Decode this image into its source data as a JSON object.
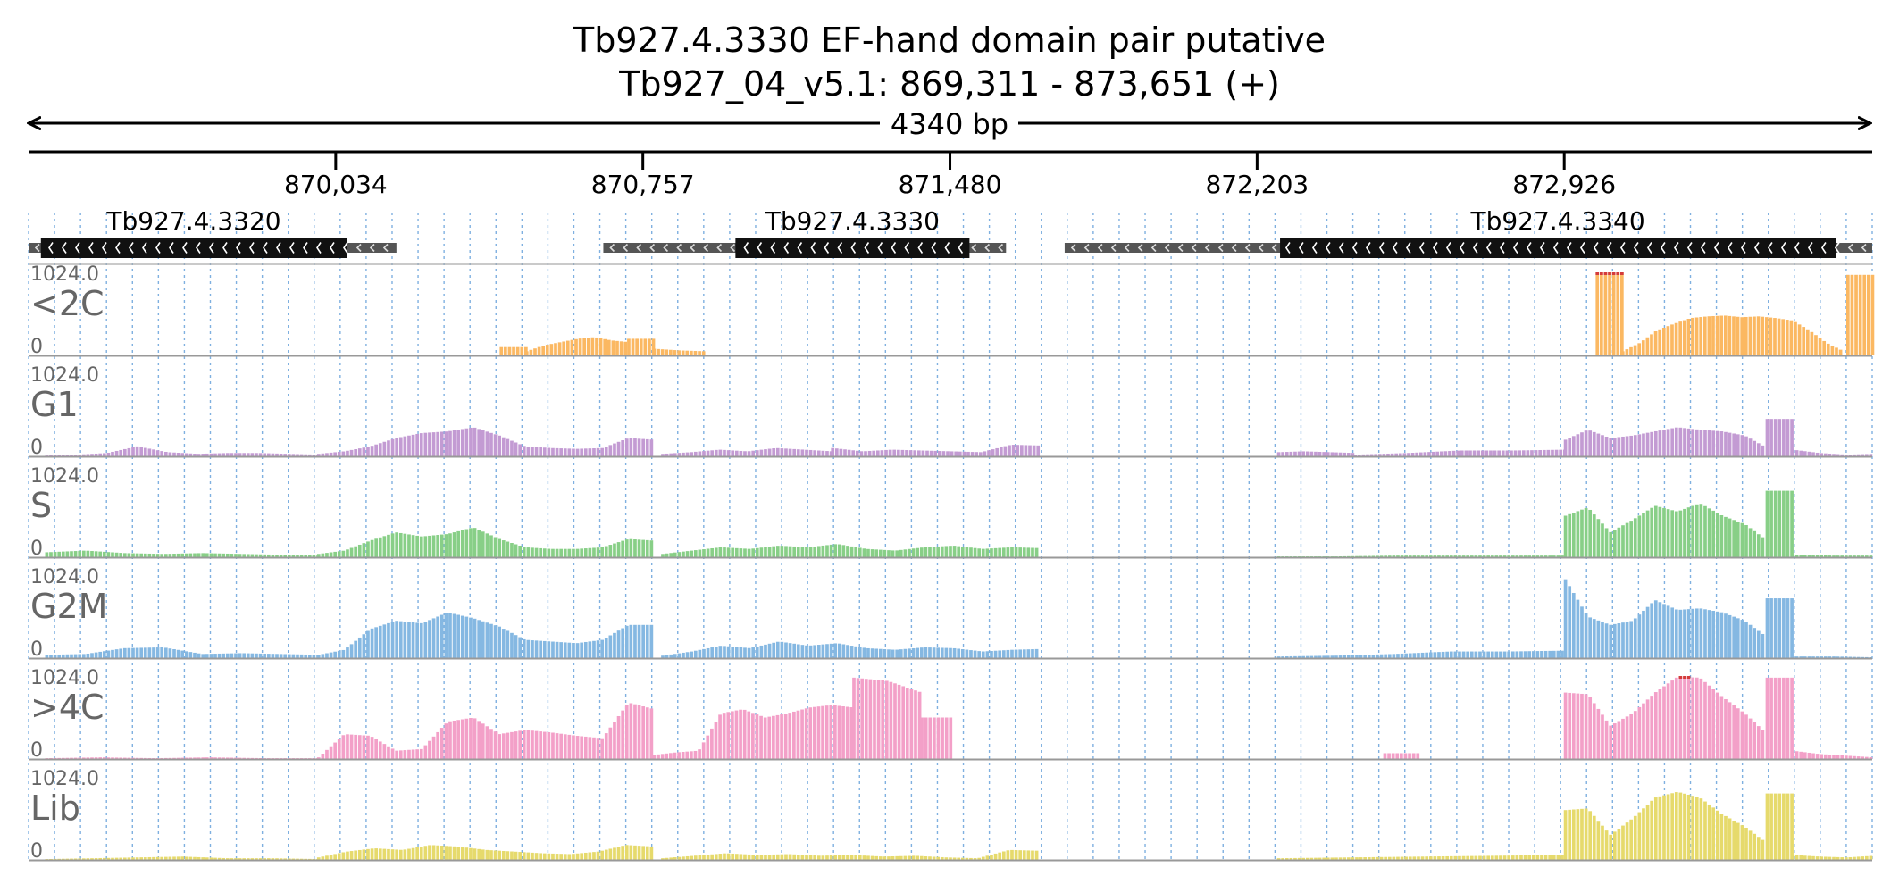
{
  "header": {
    "title": "Tb927.4.3330  EF-hand domain pair  putative",
    "locus": "Tb927_04_v5.1: 869,311 - 873,651 (+)",
    "span": "4340 bp"
  },
  "region": {
    "start": 869311,
    "end": 873651
  },
  "ruler": {
    "ticks": [
      {
        "pos": 870034,
        "label": "870,034"
      },
      {
        "pos": 870757,
        "label": "870,757"
      },
      {
        "pos": 871480,
        "label": "871,480"
      },
      {
        "pos": 872203,
        "label": "872,203"
      },
      {
        "pos": 872926,
        "label": "872,926"
      }
    ]
  },
  "genes": [
    {
      "name": "Tb927.4.3320",
      "start": 869311,
      "end": 870177,
      "cds_start": 869340,
      "cds_end": 870060,
      "strand": "-"
    },
    {
      "name": "Tb927.4.3330",
      "start": 870664,
      "end": 871612,
      "cds_start": 870975,
      "cds_end": 871526,
      "strand": "-"
    },
    {
      "name": "Tb927.4.3340",
      "start": 871750,
      "end": 873651,
      "cds_start": 872257,
      "cds_end": 873565,
      "strand": "-"
    }
  ],
  "tracks": [
    {
      "name": "<2C",
      "color": "#fbb862",
      "ymax_label": "1024.0",
      "ymin_label": "0",
      "segments": [
        {
          "start": 870420,
          "end": 870480,
          "points": [
            0.1,
            0.1
          ]
        },
        {
          "start": 870480,
          "end": 870720,
          "points": [
            0.05,
            0.12,
            0.16,
            0.2,
            0.22,
            0.18,
            0.16
          ]
        },
        {
          "start": 870720,
          "end": 870780,
          "points": [
            0.2,
            0.2
          ]
        },
        {
          "start": 870780,
          "end": 870900,
          "points": [
            0.08,
            0.06,
            0.05
          ]
        },
        {
          "start": 873000,
          "end": 873060,
          "points": [
            1.0,
            1.0,
            1.0
          ]
        },
        {
          "start": 873060,
          "end": 873580,
          "points": [
            0.05,
            0.15,
            0.3,
            0.38,
            0.45,
            0.47,
            0.48,
            0.46,
            0.47,
            0.45,
            0.42,
            0.3,
            0.15,
            0.05
          ]
        },
        {
          "start": 873590,
          "end": 873651,
          "points": [
            0.97,
            0.97
          ]
        }
      ]
    },
    {
      "name": "G1",
      "color": "#c39bd3",
      "ymax_label": "1024.0",
      "ymin_label": "0",
      "segments": [
        {
          "start": 869350,
          "end": 869990,
          "points": [
            0.01,
            0.02,
            0.04,
            0.12,
            0.05,
            0.03,
            0.04,
            0.04,
            0.03,
            0.02
          ]
        },
        {
          "start": 869990,
          "end": 870780,
          "points": [
            0.03,
            0.06,
            0.12,
            0.22,
            0.28,
            0.3,
            0.35,
            0.25,
            0.12,
            0.1,
            0.09,
            0.1,
            0.22,
            0.2
          ]
        },
        {
          "start": 870800,
          "end": 871200,
          "points": [
            0.03,
            0.05,
            0.08,
            0.06,
            0.1,
            0.08,
            0.06
          ]
        },
        {
          "start": 871200,
          "end": 871690,
          "points": [
            0.1,
            0.06,
            0.08,
            0.07,
            0.06,
            0.05,
            0.14,
            0.13
          ]
        },
        {
          "start": 872250,
          "end": 872430,
          "points": [
            0.05,
            0.06,
            0.05,
            0.04
          ]
        },
        {
          "start": 872430,
          "end": 872925,
          "points": [
            0.02,
            0.04,
            0.07,
            0.07,
            0.08
          ]
        },
        {
          "start": 872925,
          "end": 873400,
          "points": [
            0.2,
            0.32,
            0.22,
            0.25,
            0.3,
            0.35,
            0.32,
            0.3,
            0.25,
            0.1
          ]
        },
        {
          "start": 873400,
          "end": 873460,
          "points": [
            0.45,
            0.45
          ]
        },
        {
          "start": 873460,
          "end": 873651,
          "points": [
            0.08,
            0.04,
            0.02,
            0.03
          ]
        }
      ]
    },
    {
      "name": "S",
      "color": "#88cf87",
      "ymax_label": "1024.0",
      "ymin_label": "0",
      "segments": [
        {
          "start": 869350,
          "end": 869990,
          "points": [
            0.06,
            0.08,
            0.05,
            0.04,
            0.05,
            0.04,
            0.03,
            0.02
          ]
        },
        {
          "start": 869990,
          "end": 870780,
          "points": [
            0.04,
            0.08,
            0.2,
            0.3,
            0.25,
            0.28,
            0.36,
            0.22,
            0.12,
            0.1,
            0.1,
            0.12,
            0.22,
            0.2
          ]
        },
        {
          "start": 870800,
          "end": 871690,
          "points": [
            0.04,
            0.08,
            0.12,
            0.1,
            0.14,
            0.12,
            0.16,
            0.1,
            0.08,
            0.12,
            0.14,
            0.1,
            0.12,
            0.11
          ]
        },
        {
          "start": 872250,
          "end": 872925,
          "points": [
            0.01,
            0.01,
            0.02,
            0.02,
            0.02,
            0.02
          ]
        },
        {
          "start": 872925,
          "end": 873400,
          "points": [
            0.5,
            0.6,
            0.3,
            0.45,
            0.62,
            0.55,
            0.65,
            0.5,
            0.4,
            0.2
          ]
        },
        {
          "start": 873400,
          "end": 873460,
          "points": [
            0.8,
            0.8
          ]
        },
        {
          "start": 873460,
          "end": 873651,
          "points": [
            0.03,
            0.02,
            0.02
          ]
        }
      ]
    },
    {
      "name": "G2M",
      "color": "#85b8e2",
      "ymax_label": "1024.0",
      "ymin_label": "0",
      "segments": [
        {
          "start": 869350,
          "end": 869990,
          "points": [
            0.04,
            0.05,
            0.12,
            0.13,
            0.05,
            0.06,
            0.05,
            0.04
          ]
        },
        {
          "start": 869990,
          "end": 870780,
          "points": [
            0.04,
            0.1,
            0.35,
            0.45,
            0.42,
            0.55,
            0.48,
            0.38,
            0.22,
            0.2,
            0.18,
            0.22,
            0.4,
            0.4
          ]
        },
        {
          "start": 870800,
          "end": 871690,
          "points": [
            0.03,
            0.08,
            0.15,
            0.12,
            0.2,
            0.15,
            0.18,
            0.12,
            0.1,
            0.13,
            0.12,
            0.08,
            0.1,
            0.11
          ]
        },
        {
          "start": 872250,
          "end": 872925,
          "points": [
            0.02,
            0.03,
            0.05,
            0.08,
            0.08,
            0.09
          ]
        },
        {
          "start": 872925,
          "end": 873400,
          "points": [
            0.95,
            0.5,
            0.4,
            0.45,
            0.7,
            0.58,
            0.6,
            0.55,
            0.45,
            0.25
          ]
        },
        {
          "start": 873400,
          "end": 873460,
          "points": [
            0.72,
            0.72
          ]
        },
        {
          "start": 873460,
          "end": 873651,
          "points": [
            0.02,
            0.02,
            0.01
          ]
        }
      ]
    },
    {
      "name": ">4C",
      "color": "#f3a0c8",
      "ymax_label": "1024.0",
      "ymin_label": "0",
      "segments": [
        {
          "start": 869350,
          "end": 869990,
          "points": [
            0.01,
            0.02,
            0.01,
            0.02,
            0.01,
            0.01
          ]
        },
        {
          "start": 869990,
          "end": 870780,
          "points": [
            0.02,
            0.3,
            0.28,
            0.1,
            0.12,
            0.45,
            0.5,
            0.3,
            0.35,
            0.32,
            0.28,
            0.25,
            0.68,
            0.6
          ]
        },
        {
          "start": 870780,
          "end": 871250,
          "points": [
            0.05,
            0.08,
            0.1,
            0.55,
            0.6,
            0.5,
            0.55,
            0.62,
            0.65,
            0.62
          ]
        },
        {
          "start": 871250,
          "end": 871410,
          "points": [
            0.98,
            0.94,
            0.8
          ]
        },
        {
          "start": 871410,
          "end": 871480,
          "points": [
            0.5,
            0.5
          ]
        },
        {
          "start": 872500,
          "end": 872580,
          "points": [
            0.07,
            0.07
          ]
        },
        {
          "start": 872925,
          "end": 873400,
          "points": [
            0.8,
            0.78,
            0.4,
            0.55,
            0.8,
            0.99,
            0.98,
            0.75,
            0.55,
            0.3
          ]
        },
        {
          "start": 873400,
          "end": 873460,
          "points": [
            0.98,
            0.98
          ]
        },
        {
          "start": 873460,
          "end": 873651,
          "points": [
            0.1,
            0.06,
            0.04,
            0.02
          ]
        }
      ]
    },
    {
      "name": "Lib",
      "color": "#e6da6c",
      "ymax_label": "1024.0",
      "ymin_label": "0",
      "segments": [
        {
          "start": 869350,
          "end": 869990,
          "points": [
            0.01,
            0.02,
            0.03,
            0.04,
            0.02,
            0.02,
            0.01
          ]
        },
        {
          "start": 869990,
          "end": 870780,
          "points": [
            0.03,
            0.1,
            0.14,
            0.12,
            0.18,
            0.16,
            0.12,
            0.1,
            0.08,
            0.07,
            0.1,
            0.18,
            0.16
          ]
        },
        {
          "start": 870800,
          "end": 871690,
          "points": [
            0.02,
            0.05,
            0.08,
            0.06,
            0.07,
            0.05,
            0.06,
            0.04,
            0.05,
            0.03,
            0.02,
            0.12,
            0.11
          ]
        },
        {
          "start": 872250,
          "end": 872925,
          "points": [
            0.02,
            0.03,
            0.04,
            0.05,
            0.06
          ]
        },
        {
          "start": 872925,
          "end": 873400,
          "points": [
            0.6,
            0.62,
            0.3,
            0.5,
            0.75,
            0.82,
            0.75,
            0.55,
            0.4,
            0.2
          ]
        },
        {
          "start": 873400,
          "end": 873460,
          "points": [
            0.8,
            0.8
          ]
        },
        {
          "start": 873460,
          "end": 873651,
          "points": [
            0.06,
            0.04,
            0.03,
            0.05
          ]
        }
      ]
    }
  ]
}
